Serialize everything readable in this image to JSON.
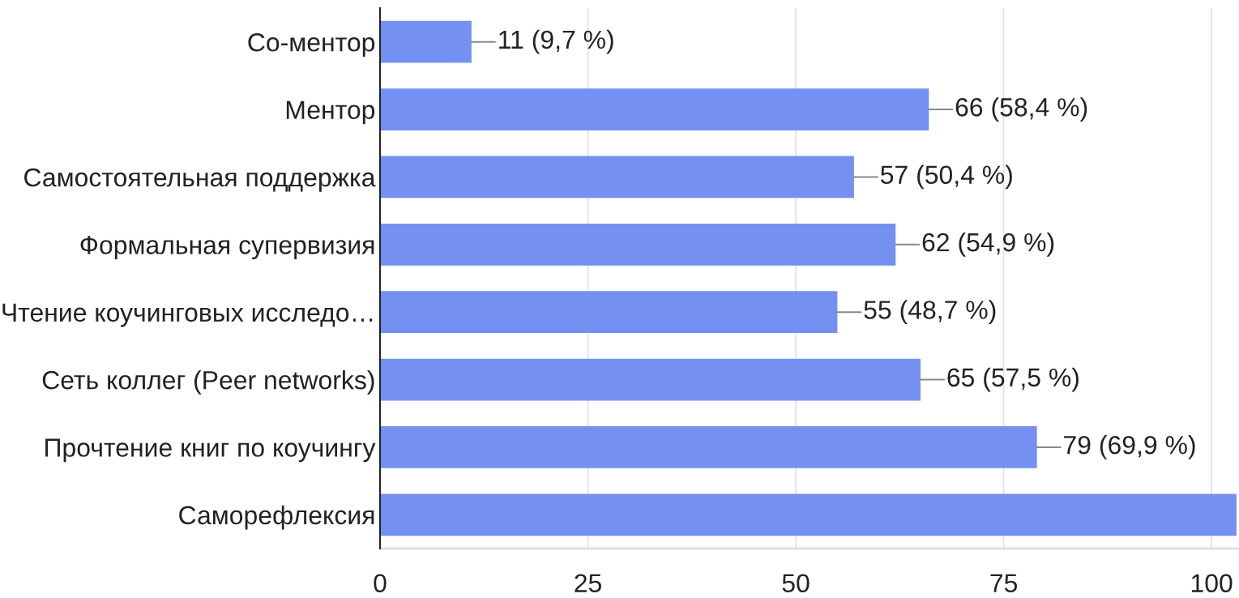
{
  "chart_data": {
    "type": "bar",
    "orientation": "horizontal",
    "categories": [
      "Со-ментор",
      "Ментор",
      "Самостоятельная поддержка",
      "Формальная супервизия",
      "Чтение коучинговых исследо…",
      "Сеть коллег (Peer networks)",
      "Прочтение книг по коучингу",
      "Саморефлексия"
    ],
    "values": [
      11,
      66,
      57,
      62,
      55,
      65,
      79,
      103
    ],
    "value_labels": [
      "11 (9,7 %)",
      "66 (58,4 %)",
      "57 (50,4 %)",
      "62 (54,9 %)",
      "55 (48,7 %)",
      "65 (57,5 %)",
      "79 (69,9 %)",
      null
    ],
    "color": "#7491f1",
    "xlim": [
      0,
      103.3
    ],
    "xticks": [
      0,
      25,
      50,
      75,
      100
    ],
    "grid": "x",
    "legend": false
  }
}
